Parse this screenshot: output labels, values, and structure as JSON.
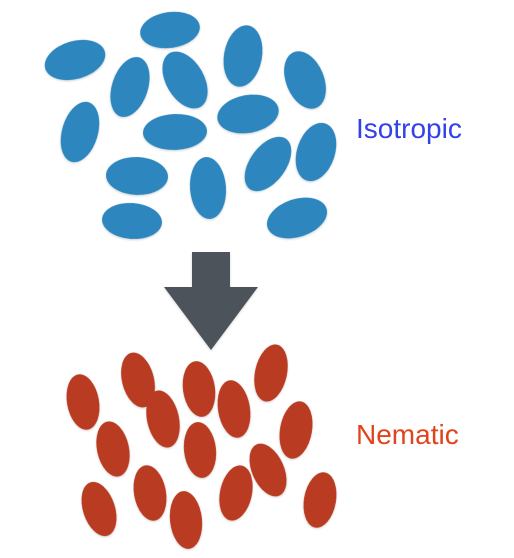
{
  "labels": {
    "isotropic": "Isotropic",
    "nematic": "Nematic"
  },
  "colors": {
    "isotropic_fill": "#2f86bf",
    "nematic_fill": "#b83a22",
    "arrow_fill": "#4d535a",
    "isotropic_label": "#3241e8",
    "nematic_label": "#e0441d"
  },
  "icons": {
    "transition_arrow": "down-arrow-icon"
  }
}
